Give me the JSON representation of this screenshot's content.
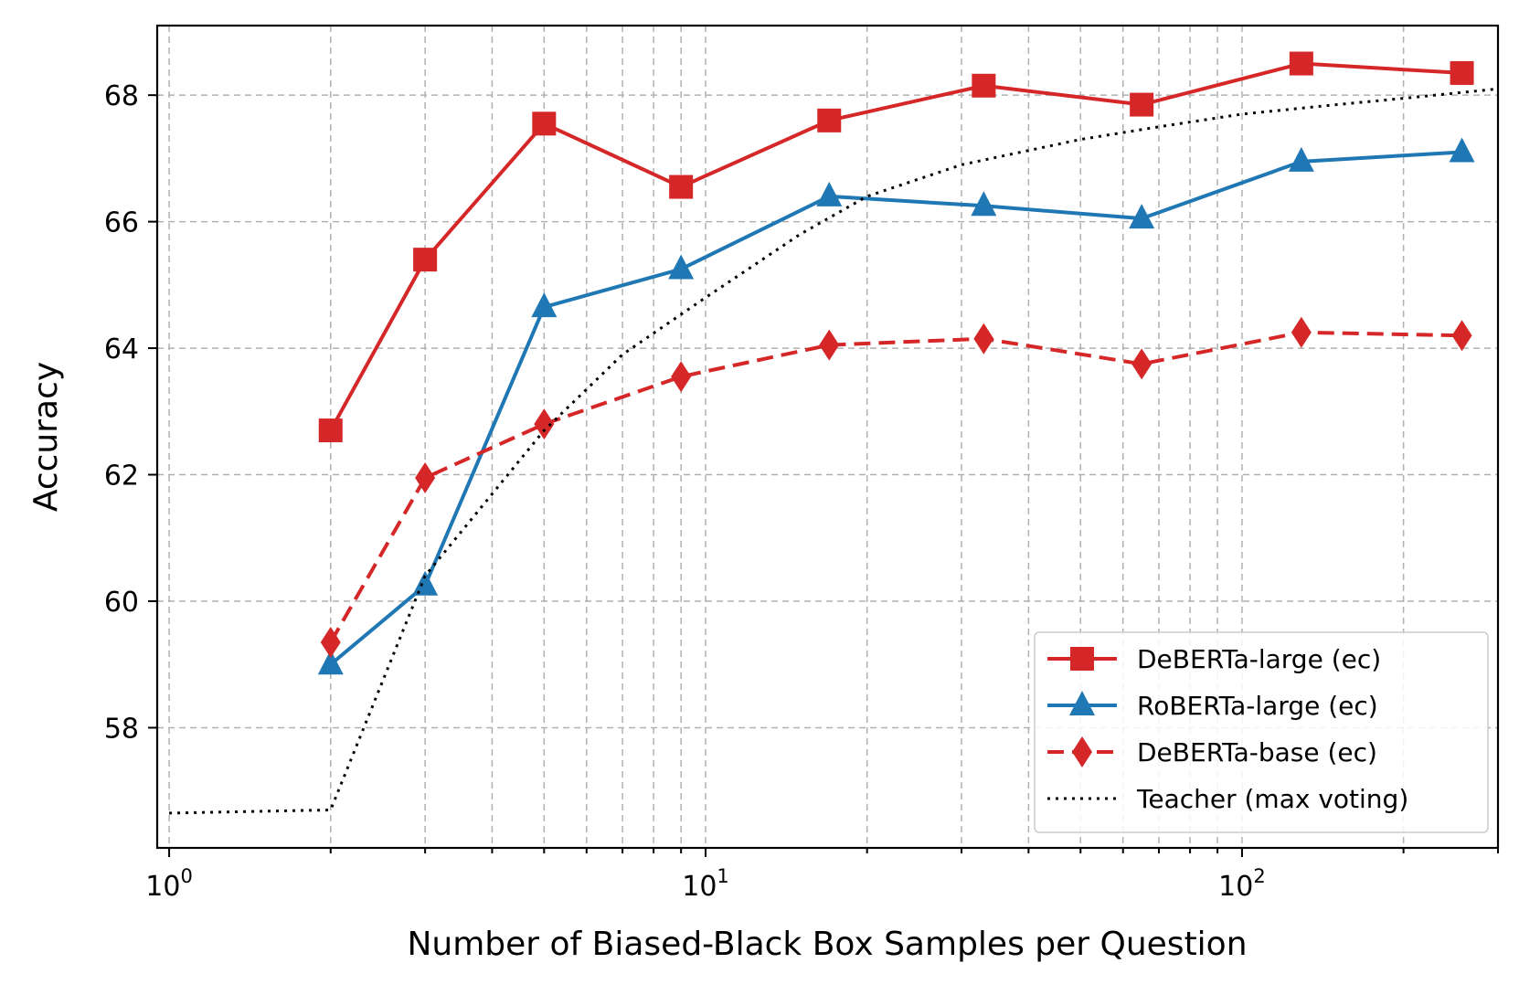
{
  "chart_data": {
    "type": "line",
    "title": "",
    "xlabel": "Number of Biased-Black Box Samples per Question",
    "ylabel": "Accuracy",
    "x_scale": "log",
    "xlim": [
      0.95,
      300
    ],
    "ylim": [
      56.1,
      69.1
    ],
    "grid": true,
    "legend_position": "lower right",
    "x_ticks": [
      {
        "value": 1,
        "base": "10",
        "exp": "0"
      },
      {
        "value": 10,
        "base": "10",
        "exp": "1"
      },
      {
        "value": 100,
        "base": "10",
        "exp": "2"
      }
    ],
    "y_ticks": [
      {
        "value": 58,
        "label": "58"
      },
      {
        "value": 60,
        "label": "60"
      },
      {
        "value": 62,
        "label": "62"
      },
      {
        "value": 64,
        "label": "64"
      },
      {
        "value": 66,
        "label": "66"
      },
      {
        "value": 68,
        "label": "68"
      }
    ],
    "series": [
      {
        "name": "DeBERTa-large (ec)",
        "color": "#d62728",
        "marker": "square",
        "linestyle": "solid",
        "x": [
          2,
          3,
          5,
          9,
          17,
          33,
          65,
          129,
          257
        ],
        "y": [
          62.7,
          65.4,
          67.55,
          66.55,
          67.6,
          68.15,
          67.85,
          68.5,
          68.35
        ]
      },
      {
        "name": "RoBERTa-large (ec)",
        "color": "#1f77b4",
        "marker": "triangle",
        "linestyle": "solid",
        "x": [
          2,
          3,
          5,
          9,
          17,
          33,
          65,
          129,
          257
        ],
        "y": [
          59.0,
          60.25,
          64.65,
          65.25,
          66.4,
          66.25,
          66.05,
          66.95,
          67.1
        ]
      },
      {
        "name": "DeBERTa-base (ec)",
        "color": "#d62728",
        "marker": "diamond",
        "linestyle": "dashed",
        "x": [
          2,
          3,
          5,
          9,
          17,
          33,
          65,
          129,
          257
        ],
        "y": [
          59.35,
          61.95,
          62.8,
          63.55,
          64.05,
          64.15,
          63.75,
          64.25,
          64.2
        ]
      },
      {
        "name": "Teacher (max voting)",
        "color": "#000000",
        "marker": "none",
        "linestyle": "dotted",
        "x": [
          1,
          2,
          3,
          5,
          7,
          10,
          15,
          20,
          30,
          50,
          70,
          100,
          150,
          200,
          300
        ],
        "y": [
          56.65,
          56.7,
          60.4,
          62.7,
          63.9,
          64.8,
          65.8,
          66.4,
          66.9,
          67.3,
          67.5,
          67.7,
          67.85,
          67.95,
          68.1
        ]
      }
    ]
  }
}
